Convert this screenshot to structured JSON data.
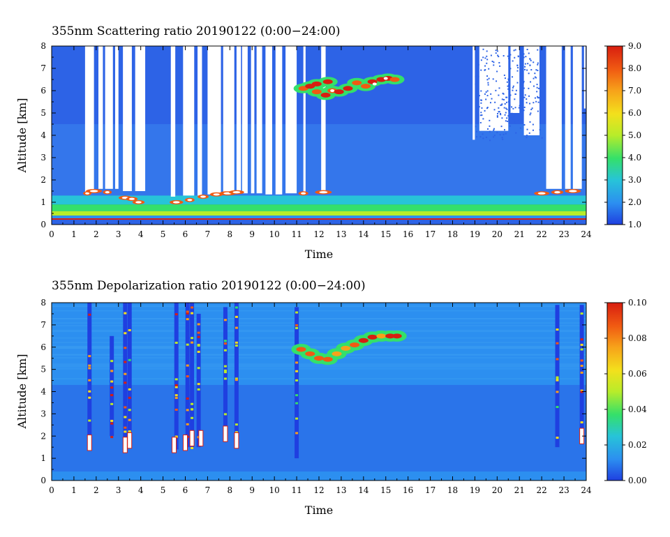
{
  "chart_data": [
    {
      "type": "heatmap",
      "title": "355nm Scattering ratio  20190122 (0:00−24:00)",
      "xlabel": "Time",
      "ylabel": "Altitude [km]",
      "xlim": [
        0,
        24
      ],
      "ylim": [
        0,
        8
      ],
      "x_ticks": [
        0,
        1,
        2,
        3,
        4,
        5,
        6,
        7,
        8,
        9,
        10,
        11,
        12,
        13,
        14,
        15,
        16,
        17,
        18,
        19,
        20,
        21,
        22,
        23,
        24
      ],
      "y_ticks": [
        0,
        1,
        2,
        3,
        4,
        5,
        6,
        7,
        8
      ],
      "colorbar": {
        "min": 1.0,
        "max": 9.0,
        "ticks": [
          "1.0",
          "2.0",
          "3.0",
          "4.0",
          "5.0",
          "6.0",
          "7.0",
          "8.0",
          "9.0"
        ],
        "colors": [
          "#1f3fe0",
          "#2c8ff0",
          "#27c4d8",
          "#34e06a",
          "#b8ec2a",
          "#f3e01c",
          "#f7a21a",
          "#f05a12",
          "#d81e10"
        ]
      },
      "features": {
        "boundary_layer": {
          "base_km": 0.3,
          "top_km": 1.3,
          "value_range": [
            4.0,
            6.0
          ]
        },
        "cloud": {
          "time_range": [
            11.2,
            15.8
          ],
          "alt_km": [
            5.4,
            6.8
          ],
          "peak_value": 9.0
        },
        "missing_data_color": "#ffffff"
      }
    },
    {
      "type": "heatmap",
      "title": "355nm Depolarization ratio  20190122 (0:00−24:00)",
      "xlabel": "Time",
      "ylabel": "Altitude [km]",
      "xlim": [
        0,
        24
      ],
      "ylim": [
        0,
        8
      ],
      "x_ticks": [
        0,
        1,
        2,
        3,
        4,
        5,
        6,
        7,
        8,
        9,
        10,
        11,
        12,
        13,
        14,
        15,
        16,
        17,
        18,
        19,
        20,
        21,
        22,
        23,
        24
      ],
      "y_ticks": [
        0,
        1,
        2,
        3,
        4,
        5,
        6,
        7,
        8
      ],
      "colorbar": {
        "min": 0.0,
        "max": 0.1,
        "ticks": [
          "0.00",
          "0.02",
          "0.04",
          "0.06",
          "0.08",
          "0.10"
        ],
        "colors": [
          "#1f3fe0",
          "#2c8ff0",
          "#27c4d8",
          "#34e06a",
          "#b8ec2a",
          "#f3e01c",
          "#f7a21a",
          "#f05a12",
          "#d81e10"
        ]
      },
      "features": {
        "background_value": 0.01,
        "cloud": {
          "time_range": [
            11.0,
            15.6
          ],
          "alt_km": [
            5.0,
            6.8
          ],
          "peak_value": 0.1
        },
        "missing_data_color": "#ffffff"
      }
    }
  ]
}
